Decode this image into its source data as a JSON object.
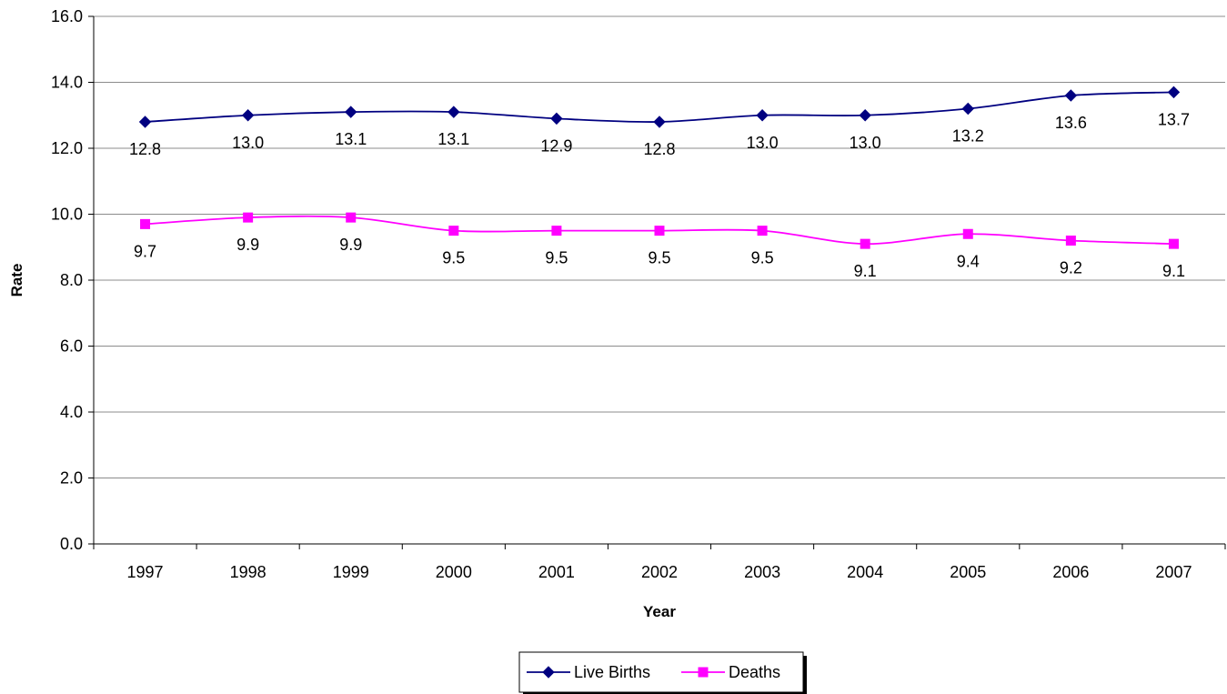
{
  "chart_data": {
    "type": "line",
    "title": "",
    "xlabel": "Year",
    "ylabel": "Rate",
    "categories": [
      "1997",
      "1998",
      "1999",
      "2000",
      "2001",
      "2002",
      "2003",
      "2004",
      "2005",
      "2006",
      "2007"
    ],
    "ylim": [
      0,
      16
    ],
    "yticks": [
      "0.0",
      "2.0",
      "4.0",
      "6.0",
      "8.0",
      "10.0",
      "12.0",
      "14.0",
      "16.0"
    ],
    "grid": true,
    "legend_position": "bottom",
    "series": [
      {
        "name": "Live Births",
        "color": "#000080",
        "marker": "diamond",
        "values": [
          12.8,
          13.0,
          13.1,
          13.1,
          12.9,
          12.8,
          13.0,
          13.0,
          13.2,
          13.6,
          13.7
        ],
        "labels": [
          "12.8",
          "13.0",
          "13.1",
          "13.1",
          "12.9",
          "12.8",
          "13.0",
          "13.0",
          "13.2",
          "13.6",
          "13.7"
        ]
      },
      {
        "name": "Deaths",
        "color": "#FF00FF",
        "marker": "square",
        "values": [
          9.7,
          9.9,
          9.9,
          9.5,
          9.5,
          9.5,
          9.5,
          9.1,
          9.4,
          9.2,
          9.1
        ],
        "labels": [
          "9.7",
          "9.9",
          "9.9",
          "9.5",
          "9.5",
          "9.5",
          "9.5",
          "9.1",
          "9.4",
          "9.2",
          "9.1"
        ]
      }
    ]
  }
}
